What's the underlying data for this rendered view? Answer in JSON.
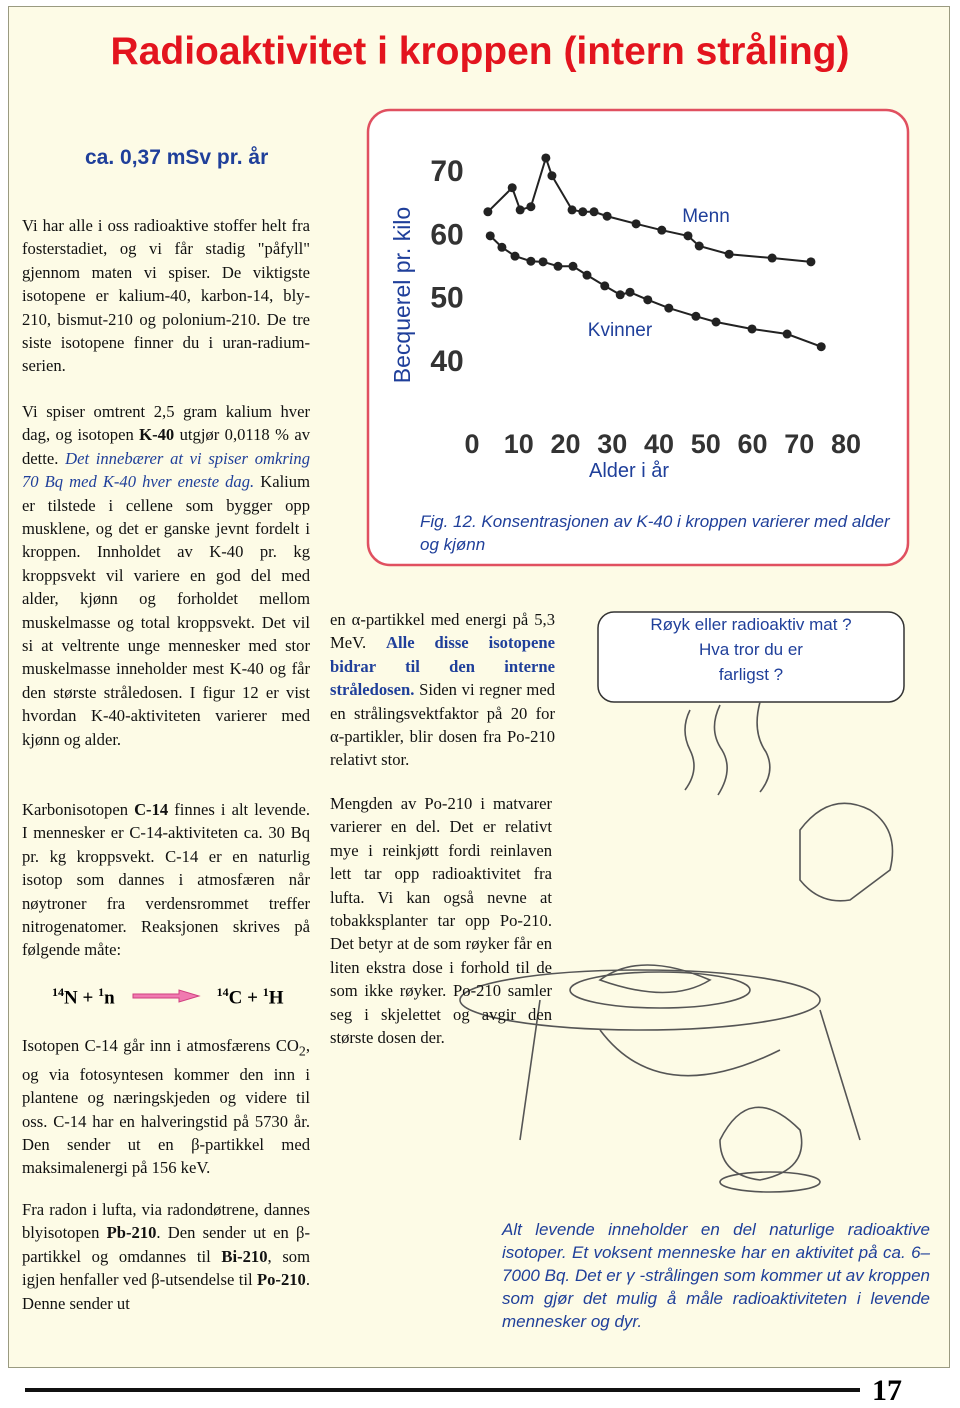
{
  "header": {
    "title": "Radioaktivitet i kroppen (intern stråling)",
    "subtitle": "ca. 0,37 mSv pr. år"
  },
  "col1": {
    "p1": "Vi har alle i oss radioaktive stoffer helt fra fosterstadiet, og vi får stadig \"påfyll\" gjennom maten vi spiser. De viktigste isotopene er kalium-40, karbon-14, bly-210, bismut-210 og polonium-210. De tre siste isotopene finner du i uran-radium-serien.",
    "p2": [
      "Vi spiser omtrent 2,5 gram kalium hver dag, og isotopen ",
      "K-40",
      " utgjør 0,0118 % av dette. ",
      "Det innebærer at vi spiser omkring 70 Bq med K-40 hver eneste dag.",
      " Kalium er tilstede i cellene som bygger opp musklene, og det er ganske jevnt fordelt i kroppen. Innholdet av K-40 pr. kg kroppsvekt vil variere en god del med alder, kjønn og forholdet mellom muskelmasse og total kroppsvekt. Det vil si at veltrente unge mennesker med stor muskelmasse inneholder mest K-40 og får den største stråledosen. I figur 12 er vist hvordan K-40-aktiviteten varierer med kjønn og alder."
    ],
    "p3": [
      "Karbonisotopen ",
      "C-14",
      " finnes i alt levende. I mennesker er C-14-aktiviteten ca. 30 Bq pr. kg kroppsvekt. C-14 er en naturlig isotop som dannes i atmosfæren når nøytroner fra verdensrommet treffer nitrogenatomer. Reaksjonen skrives på følgende måte:"
    ],
    "equation": [
      "14",
      "N + ",
      "1",
      "n",
      "14",
      "C + ",
      "1",
      "H"
    ],
    "p4": [
      "Isotopen C-14 går inn i atmosfærens CO",
      "2",
      ", og via fotosyntesen kommer den inn i plantene og næringskjeden og videre til oss. C-14 har en halveringstid på 5730 år. Den sender ut en β-partikkel med maksimalenergi på 156 keV."
    ],
    "p5": [
      "Fra radon i lufta, via radondøtrene, dannes blyisotopen ",
      "Pb-210",
      ". Den sender ut en β-partikkel og omdannes til ",
      "Bi-210",
      ", som igjen henfaller ved β-utsendelse til ",
      "Po-210",
      ". Denne sender ut"
    ]
  },
  "col2": {
    "p6": [
      "en α-partikkel med energi på 5,3 MeV. ",
      "Alle disse isotopene bidrar til den interne stråledosen.",
      " Siden vi regner med en strålingsvektfaktor på 20 for α-partikler, blir dosen fra Po-210 relativt stor."
    ],
    "p7": "Mengden av Po-210 i matvarer varierer en del. Det er relativt mye i reinkjøtt fordi reinlaven lett tar opp radioaktivitet fra lufta. Vi kan også nevne at tobakksplanter tar opp Po-210. Det betyr at de som røyker får en liten ekstra dose i forhold til de som ikke røyker. Po-210 samler seg i skjelettet og avgir den største dosen der."
  },
  "chart_data": {
    "type": "scatter",
    "x_label": "Alder i år",
    "y_label": "Becquerel pr. kilo",
    "caption": "Fig. 12. Konsentrasjonen av K-40 i kroppen varierer med alder og kjønn",
    "xlim": [
      0,
      80
    ],
    "ylim": [
      40,
      70
    ],
    "xticks": [
      0,
      10,
      20,
      30,
      40,
      50,
      60,
      70,
      80
    ],
    "yticks": [
      40,
      50,
      60,
      70
    ],
    "series": [
      {
        "name": "Menn",
        "color": "#222222",
        "x": [
          3.4,
          8.6,
          10.3,
          12.6,
          15.8,
          17.1,
          21.4,
          23.7,
          26.1,
          28.9,
          35.1,
          40.6,
          46.2,
          48.6,
          55.0,
          64.2,
          72.5
        ],
        "values": [
          63.4,
          67.2,
          63.7,
          64.2,
          71.9,
          69.1,
          63.7,
          63.4,
          63.4,
          62.7,
          61.5,
          60.5,
          59.6,
          58.0,
          56.7,
          56.1,
          55.5
        ]
      },
      {
        "name": "Kvinner",
        "color": "#222222",
        "x": [
          3.9,
          6.4,
          9.2,
          12.6,
          15.2,
          18.4,
          21.6,
          24.6,
          28.4,
          31.7,
          33.8,
          37.6,
          42.1,
          47.9,
          52.2,
          59.9,
          67.4,
          74.7
        ],
        "values": [
          59.6,
          57.8,
          56.4,
          55.6,
          55.5,
          54.8,
          54.8,
          53.4,
          51.7,
          50.3,
          50.7,
          49.5,
          48.2,
          46.9,
          46.0,
          44.9,
          44.1,
          42.1
        ]
      }
    ]
  },
  "bubble": [
    "Røyk eller radioaktiv mat ?",
    "Hva tror du er",
    "farligst ?"
  ],
  "note": "Alt levende inneholder en del naturlige radioaktive isotoper.  Et voksent menneske har en aktivitet på ca. 6–7000 Bq. Det er γ -strålingen som kommer ut av kroppen som gjør det mulig å måle radioaktiviteten i levende mennesker og dyr.",
  "page_number": "17"
}
